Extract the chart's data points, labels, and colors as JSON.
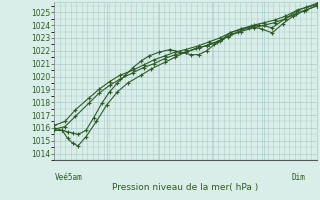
{
  "title": "Pression niveau de la mer( hPa )",
  "xlabel_left": "Veé5am",
  "xlabel_right": "Dim",
  "ylim": [
    1013.5,
    1025.8
  ],
  "yticks": [
    1014,
    1015,
    1016,
    1017,
    1018,
    1019,
    1020,
    1021,
    1022,
    1023,
    1024,
    1025
  ],
  "background_color": "#daeee9",
  "grid_color": "#aacccc",
  "line_color": "#2d5a27",
  "fig_bg": "#daeee9",
  "line1_x": [
    0.0,
    0.03,
    0.05,
    0.07,
    0.09,
    0.12,
    0.15,
    0.18,
    0.21,
    0.24,
    0.27,
    0.3,
    0.33,
    0.36,
    0.4,
    0.44,
    0.48,
    0.52,
    0.55,
    0.58,
    0.61,
    0.64,
    0.67,
    0.71,
    0.75,
    0.79,
    0.83,
    0.87,
    0.91,
    0.95,
    1.0
  ],
  "line1_y": [
    1015.8,
    1015.8,
    1015.7,
    1015.6,
    1015.5,
    1015.8,
    1016.8,
    1017.9,
    1018.8,
    1019.5,
    1020.1,
    1020.7,
    1021.2,
    1021.6,
    1021.9,
    1022.1,
    1021.9,
    1021.7,
    1021.7,
    1022.0,
    1022.5,
    1022.9,
    1023.4,
    1023.7,
    1023.9,
    1023.7,
    1023.4,
    1024.1,
    1024.7,
    1025.1,
    1025.5
  ],
  "line2_x": [
    0.0,
    0.03,
    0.05,
    0.07,
    0.09,
    0.12,
    0.16,
    0.2,
    0.24,
    0.28,
    0.33,
    0.37,
    0.42,
    0.46,
    0.5,
    0.54,
    0.58,
    0.62,
    0.66,
    0.7,
    0.74,
    0.78,
    0.83,
    0.88,
    0.93,
    1.0
  ],
  "line2_y": [
    1016.0,
    1015.8,
    1015.2,
    1014.8,
    1014.6,
    1015.3,
    1016.5,
    1017.8,
    1018.8,
    1019.5,
    1020.1,
    1020.6,
    1021.1,
    1021.5,
    1021.9,
    1022.2,
    1022.4,
    1022.7,
    1023.1,
    1023.5,
    1023.8,
    1024.0,
    1023.8,
    1024.5,
    1025.2,
    1025.6
  ],
  "line3_x": [
    0.0,
    0.04,
    0.08,
    0.13,
    0.17,
    0.21,
    0.25,
    0.3,
    0.34,
    0.38,
    0.42,
    0.46,
    0.5,
    0.55,
    0.59,
    0.63,
    0.67,
    0.71,
    0.76,
    0.8,
    0.84,
    0.88,
    0.92,
    0.96,
    1.0
  ],
  "line3_y": [
    1015.9,
    1016.1,
    1016.9,
    1017.9,
    1018.7,
    1019.3,
    1019.8,
    1020.3,
    1020.7,
    1021.0,
    1021.4,
    1021.7,
    1021.9,
    1022.2,
    1022.5,
    1022.8,
    1023.2,
    1023.5,
    1023.8,
    1024.0,
    1024.2,
    1024.5,
    1024.9,
    1025.2,
    1025.5
  ],
  "line4_x": [
    0.0,
    0.04,
    0.08,
    0.13,
    0.17,
    0.21,
    0.25,
    0.3,
    0.34,
    0.38,
    0.42,
    0.46,
    0.5,
    0.55,
    0.59,
    0.63,
    0.67,
    0.71,
    0.76,
    0.8,
    0.84,
    0.88,
    0.92,
    0.96,
    1.0
  ],
  "line4_y": [
    1016.2,
    1016.5,
    1017.4,
    1018.3,
    1019.0,
    1019.6,
    1020.1,
    1020.5,
    1020.9,
    1021.3,
    1021.6,
    1021.9,
    1022.1,
    1022.4,
    1022.7,
    1023.0,
    1023.4,
    1023.7,
    1024.0,
    1024.2,
    1024.4,
    1024.7,
    1025.1,
    1025.4,
    1025.7
  ]
}
